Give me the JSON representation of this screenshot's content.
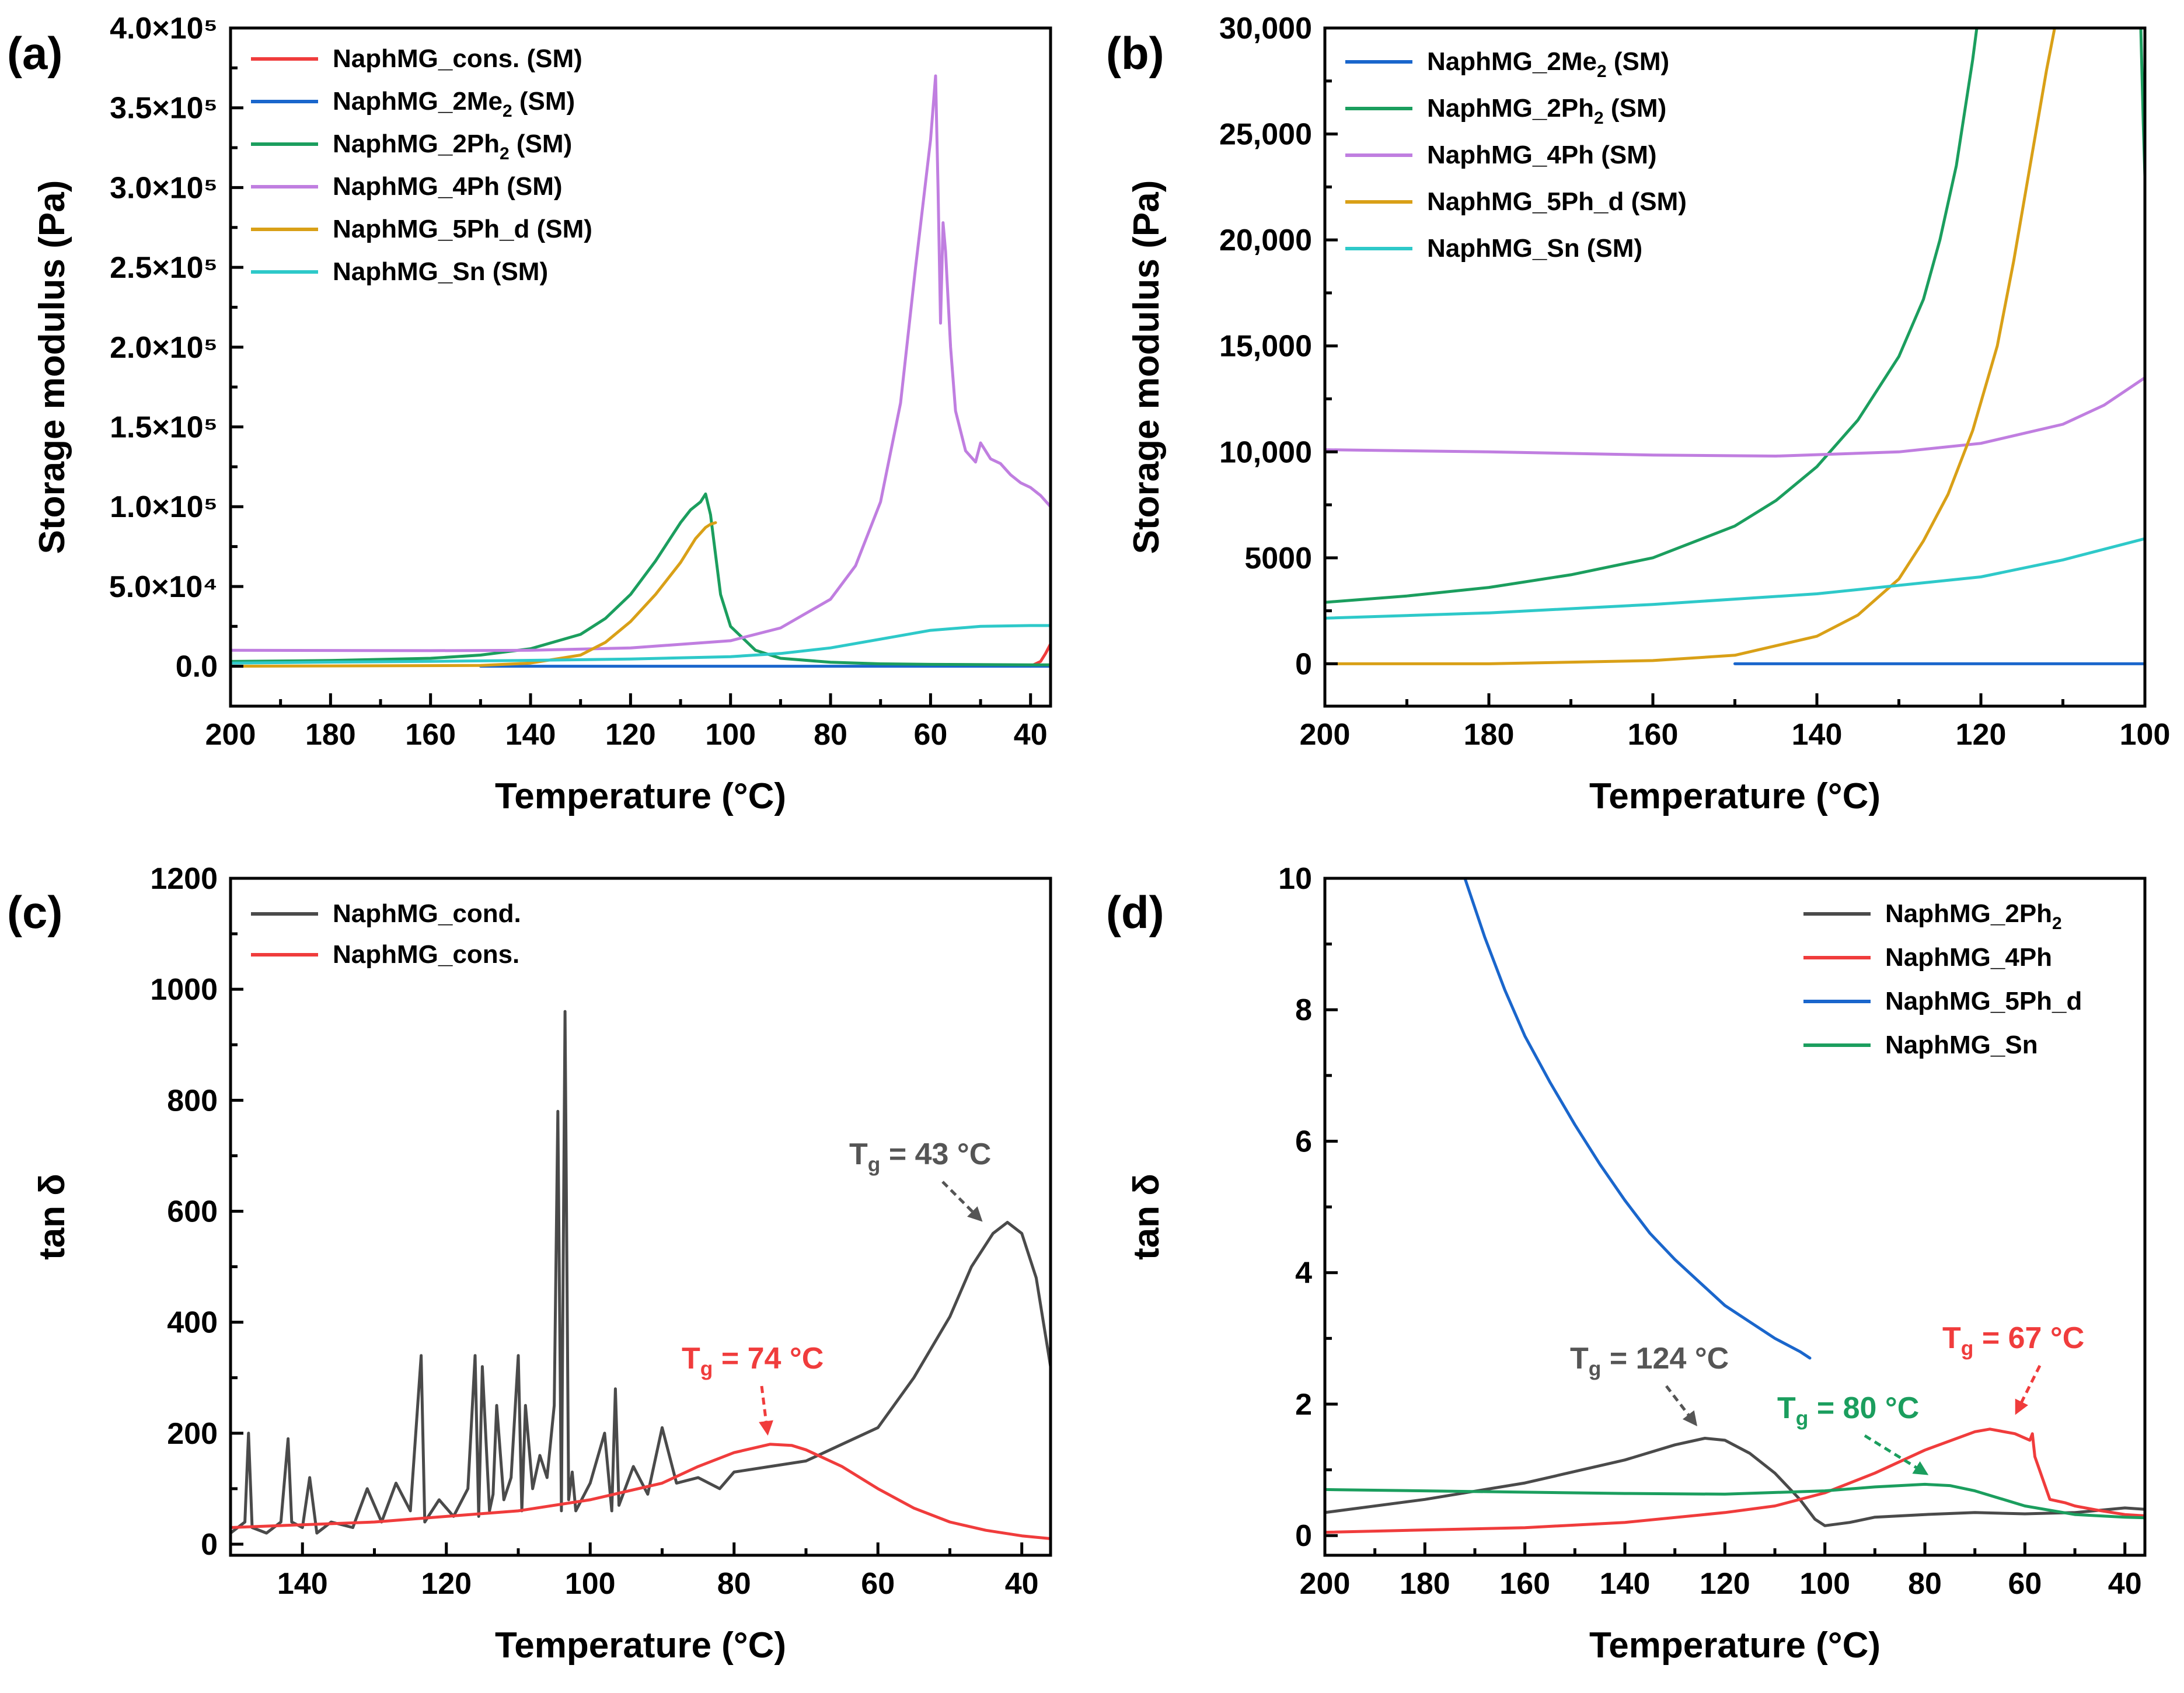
{
  "chart_data": [
    {
      "panel": "(a)",
      "type": "line",
      "xlabel": "Temperature (°C)",
      "ylabel": "Storage modulus (Pa)",
      "xlim": [
        200,
        36
      ],
      "ylim": [
        -25000,
        400000
      ],
      "xticks": [
        200,
        180,
        160,
        140,
        120,
        100,
        80,
        60,
        40
      ],
      "yticks": [
        0,
        50000,
        100000,
        150000,
        200000,
        250000,
        300000,
        350000,
        400000
      ],
      "ytick_labels": [
        "0.0",
        "5.0×10⁴",
        "1.0×10⁵",
        "1.5×10⁵",
        "2.0×10⁵",
        "2.5×10⁵",
        "3.0×10⁵",
        "3.5×10⁵",
        "4.0×10⁵"
      ],
      "legend_position": "top-left",
      "series": [
        {
          "name": "NaphMG_cons. (SM)",
          "legend_main": "NaphMG_cons. (SM)",
          "color": "#f03c3c",
          "x": [
            40,
            38,
            37,
            36
          ],
          "y": [
            0,
            3000,
            8000,
            14000
          ]
        },
        {
          "name": "NaphMG_2Me2 (SM)",
          "legend_main": "NaphMG_2Me",
          "legend_sub": "2",
          "legend_tail": " (SM)",
          "color": "#1a66cc",
          "x": [
            150,
            120,
            80,
            36
          ],
          "y": [
            0,
            0,
            0,
            0
          ]
        },
        {
          "name": "NaphMG_2Ph2 (SM)",
          "legend_main": "NaphMG_2Ph",
          "legend_sub": "2",
          "legend_tail": " (SM)",
          "color": "#1b9e5e",
          "x": [
            200,
            180,
            160,
            150,
            140,
            130,
            125,
            120,
            115,
            110,
            108,
            106,
            105,
            104,
            103,
            102,
            100,
            95,
            90,
            80,
            70,
            60,
            40,
            36
          ],
          "y": [
            3000,
            3600,
            5000,
            7000,
            11000,
            20000,
            30000,
            45000,
            66000,
            90000,
            98000,
            103000,
            108000,
            95000,
            70000,
            45000,
            25000,
            10000,
            5000,
            2500,
            1500,
            1200,
            900,
            900
          ]
        },
        {
          "name": "NaphMG_4Ph (SM)",
          "legend_main": "NaphMG_4Ph (SM)",
          "color": "#c07ee0",
          "x": [
            200,
            160,
            140,
            120,
            100,
            90,
            80,
            75,
            70,
            66,
            63,
            60,
            59,
            58.5,
            58,
            57.5,
            57,
            56,
            55,
            53,
            51,
            50,
            48,
            46,
            44,
            42,
            40,
            38,
            36
          ],
          "y": [
            10000,
            9800,
            10000,
            11500,
            16000,
            24000,
            42000,
            63000,
            103000,
            165000,
            250000,
            330000,
            370000,
            300000,
            215000,
            278000,
            260000,
            200000,
            160000,
            135000,
            128000,
            140000,
            130000,
            127000,
            120000,
            115000,
            112000,
            107000,
            100000
          ]
        },
        {
          "name": "NaphMG_5Ph_d (SM)",
          "legend_main": "NaphMG_5Ph_d (SM)",
          "color": "#d9a017",
          "x": [
            200,
            150,
            140,
            130,
            125,
            120,
            115,
            110,
            107,
            105,
            104,
            103
          ],
          "y": [
            0,
            500,
            2000,
            7000,
            15000,
            28000,
            45000,
            65000,
            80000,
            87000,
            89000,
            90000
          ]
        },
        {
          "name": "NaphMG_Sn (SM)",
          "legend_main": "NaphMG_Sn (SM)",
          "color": "#2ec9c9",
          "x": [
            200,
            180,
            160,
            140,
            120,
            100,
            90,
            80,
            70,
            60,
            50,
            40,
            36
          ],
          "y": [
            2000,
            2600,
            3100,
            3700,
            4500,
            6000,
            8000,
            11500,
            17000,
            22500,
            25000,
            25500,
            25500
          ]
        }
      ]
    },
    {
      "panel": "(b)",
      "type": "line",
      "xlabel": "Temperature (°C)",
      "ylabel": "Storage modulus (Pa)",
      "xlim": [
        200,
        100
      ],
      "ylim": [
        -2000,
        30000
      ],
      "xticks": [
        200,
        180,
        160,
        140,
        120,
        100
      ],
      "yticks": [
        0,
        5000,
        10000,
        15000,
        20000,
        25000,
        30000
      ],
      "ytick_labels": [
        "0",
        "5000",
        "10,000",
        "15,000",
        "20,000",
        "25,000",
        "30,000"
      ],
      "legend_position": "top-left",
      "series": [
        {
          "name": "NaphMG_2Me2 (SM)",
          "legend_main": "NaphMG_2Me",
          "legend_sub": "2",
          "legend_tail": " (SM)",
          "color": "#1a66cc",
          "x": [
            150,
            130,
            100
          ],
          "y": [
            0,
            0,
            0
          ]
        },
        {
          "name": "NaphMG_2Ph2 (SM)",
          "legend_main": "NaphMG_2Ph",
          "legend_sub": "2",
          "legend_tail": " (SM)",
          "color": "#1b9e5e",
          "x": [
            200,
            190,
            180,
            170,
            160,
            150,
            145,
            140,
            135,
            130,
            127,
            125,
            123,
            121,
            120.5,
            120,
            100.5,
            100.2,
            100
          ],
          "y": [
            2900,
            3200,
            3600,
            4200,
            5000,
            6500,
            7700,
            9300,
            11500,
            14500,
            17200,
            20000,
            23500,
            28500,
            30000,
            30000,
            30000,
            25500,
            23000
          ]
        },
        {
          "name": "NaphMG_4Ph (SM)",
          "legend_main": "NaphMG_4Ph (SM)",
          "color": "#c07ee0",
          "x": [
            200,
            180,
            160,
            145,
            130,
            120,
            110,
            105,
            100
          ],
          "y": [
            10100,
            10000,
            9850,
            9800,
            10000,
            10400,
            11300,
            12200,
            13500
          ]
        },
        {
          "name": "NaphMG_5Ph_d (SM)",
          "legend_main": "NaphMG_5Ph_d (SM)",
          "color": "#d9a017",
          "x": [
            200,
            180,
            160,
            150,
            140,
            135,
            130,
            127,
            124,
            121,
            118,
            116,
            114,
            112,
            111,
            110.8
          ],
          "y": [
            0,
            0,
            150,
            400,
            1300,
            2300,
            4000,
            5800,
            8000,
            11000,
            15000,
            19000,
            23500,
            28000,
            30000,
            30000
          ]
        },
        {
          "name": "NaphMG_Sn (SM)",
          "legend_main": "NaphMG_Sn (SM)",
          "color": "#2ec9c9",
          "x": [
            200,
            180,
            160,
            140,
            120,
            110,
            100
          ],
          "y": [
            2150,
            2400,
            2800,
            3300,
            4100,
            4900,
            5900
          ]
        }
      ]
    },
    {
      "panel": "(c)",
      "type": "line",
      "xlabel": "Temperature (°C)",
      "ylabel": "tan δ",
      "xlim": [
        150,
        36
      ],
      "ylim": [
        -20,
        1200
      ],
      "xticks": [
        140,
        120,
        100,
        80,
        60,
        40
      ],
      "yticks": [
        0,
        200,
        400,
        600,
        800,
        1000,
        1200
      ],
      "ytick_labels": [
        "0",
        "200",
        "400",
        "600",
        "800",
        "1000",
        "1200"
      ],
      "legend_position": "top-left",
      "series": [
        {
          "name": "NaphMG_cond.",
          "legend_main": "NaphMG_cond.",
          "color": "#4a4a4a",
          "x": [
            150,
            148,
            147.5,
            147,
            145,
            143,
            142,
            141.5,
            140,
            139,
            138,
            136,
            133,
            131,
            129,
            127,
            125,
            123.5,
            123,
            122.5,
            121,
            119,
            117,
            116,
            115.5,
            115,
            114,
            113.5,
            113,
            112,
            111,
            110,
            109.5,
            109,
            108,
            107,
            106,
            105,
            104.5,
            104,
            103.5,
            103,
            102.5,
            102,
            100,
            98,
            97,
            96.5,
            96,
            94,
            92,
            90,
            88,
            85,
            82,
            80,
            75,
            70,
            65,
            60,
            55,
            50,
            47,
            44,
            42,
            40,
            38,
            36
          ],
          "y": [
            20,
            40,
            200,
            30,
            20,
            40,
            190,
            40,
            30,
            120,
            20,
            40,
            30,
            100,
            40,
            110,
            60,
            340,
            40,
            50,
            80,
            50,
            100,
            340,
            50,
            320,
            60,
            90,
            250,
            80,
            120,
            340,
            60,
            250,
            100,
            160,
            120,
            250,
            780,
            60,
            960,
            80,
            130,
            60,
            110,
            200,
            60,
            280,
            70,
            140,
            90,
            210,
            110,
            120,
            100,
            130,
            140,
            150,
            180,
            210,
            300,
            410,
            500,
            560,
            580,
            560,
            480,
            320
          ]
        },
        {
          "name": "NaphMG_cons.",
          "legend_main": "NaphMG_cons.",
          "color": "#f03c3c",
          "x": [
            150,
            140,
            130,
            120,
            110,
            100,
            90,
            85,
            80,
            75,
            72,
            70,
            65,
            60,
            55,
            50,
            45,
            40,
            36
          ],
          "y": [
            30,
            35,
            40,
            50,
            60,
            80,
            110,
            140,
            165,
            180,
            178,
            170,
            140,
            100,
            65,
            40,
            25,
            15,
            10
          ]
        }
      ],
      "annotations": [
        {
          "label": "T",
          "sub": "g",
          "tail": " = 43 °C",
          "color": "#555555"
        },
        {
          "label": "T",
          "sub": "g",
          "tail": " = 74 °C",
          "color": "#f03c3c"
        }
      ]
    },
    {
      "panel": "(d)",
      "type": "line",
      "xlabel": "Temperature (°C)",
      "ylabel": "tan δ",
      "xlim": [
        200,
        36
      ],
      "ylim": [
        -0.3,
        10
      ],
      "xticks": [
        200,
        180,
        160,
        140,
        120,
        100,
        80,
        60,
        40
      ],
      "yticks": [
        0,
        2,
        4,
        6,
        8,
        10
      ],
      "ytick_labels": [
        "0",
        "2",
        "4",
        "6",
        "8",
        "10"
      ],
      "legend_position": "top-right",
      "series": [
        {
          "name": "NaphMG_2Ph2",
          "legend_main": "NaphMG_2Ph",
          "legend_sub": "2",
          "legend_tail": "",
          "color": "#4a4a4a",
          "x": [
            200,
            180,
            160,
            140,
            130,
            124,
            120,
            115,
            110,
            105,
            102,
            100,
            95,
            90,
            80,
            70,
            60,
            50,
            40,
            36
          ],
          "y": [
            0.35,
            0.55,
            0.8,
            1.15,
            1.38,
            1.48,
            1.45,
            1.25,
            0.95,
            0.55,
            0.25,
            0.15,
            0.2,
            0.28,
            0.32,
            0.35,
            0.33,
            0.35,
            0.42,
            0.4
          ]
        },
        {
          "name": "NaphMG_4Ph",
          "legend_main": "NaphMG_4Ph",
          "color": "#f03c3c",
          "x": [
            200,
            160,
            140,
            120,
            110,
            100,
            90,
            80,
            70,
            67,
            62,
            59,
            58.5,
            58,
            55,
            52,
            50,
            45,
            40,
            36
          ],
          "y": [
            0.05,
            0.12,
            0.2,
            0.35,
            0.45,
            0.65,
            0.95,
            1.3,
            1.58,
            1.62,
            1.55,
            1.45,
            1.55,
            1.2,
            0.55,
            0.5,
            0.45,
            0.38,
            0.32,
            0.3
          ]
        },
        {
          "name": "NaphMG_5Ph_d",
          "legend_main": "NaphMG_5Ph_d",
          "color": "#1a66cc",
          "x": [
            172,
            168,
            164,
            160,
            155,
            150,
            145,
            140,
            135,
            130,
            125,
            120,
            115,
            110,
            105,
            103
          ],
          "y": [
            10,
            9.1,
            8.3,
            7.6,
            6.9,
            6.25,
            5.65,
            5.1,
            4.6,
            4.2,
            3.85,
            3.5,
            3.25,
            3.0,
            2.8,
            2.7
          ]
        },
        {
          "name": "NaphMG_Sn",
          "legend_main": "NaphMG_Sn",
          "color": "#1b9e5e",
          "x": [
            200,
            180,
            160,
            140,
            120,
            100,
            90,
            80,
            75,
            70,
            60,
            50,
            40,
            36
          ],
          "y": [
            0.7,
            0.68,
            0.66,
            0.64,
            0.63,
            0.68,
            0.74,
            0.78,
            0.76,
            0.68,
            0.45,
            0.32,
            0.28,
            0.27
          ]
        }
      ],
      "annotations": [
        {
          "label": "T",
          "sub": "g",
          "tail": " = 124 °C",
          "color": "#555555"
        },
        {
          "label": "T",
          "sub": "g",
          "tail": " = 67 °C",
          "color": "#f03c3c"
        },
        {
          "label": "T",
          "sub": "g",
          "tail": " = 80 °C",
          "color": "#1b9e5e"
        }
      ]
    }
  ]
}
